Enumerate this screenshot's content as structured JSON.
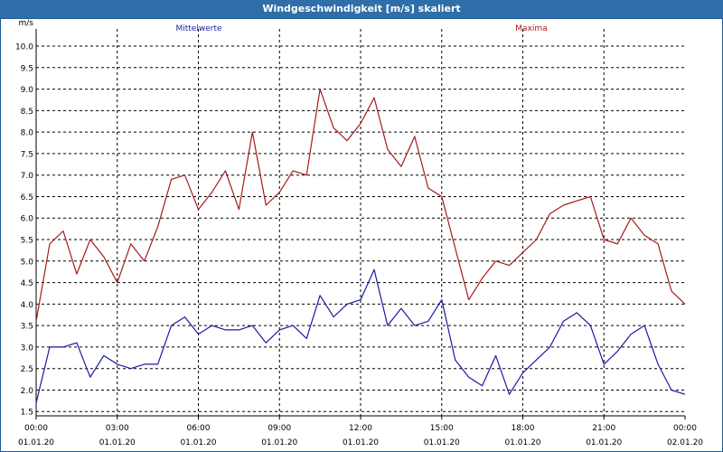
{
  "window": {
    "title": "Windgeschwindigkeit [m/s] skaliert"
  },
  "chart_data": {
    "type": "line",
    "title": "Windgeschwindigkeit [m/s] skaliert",
    "unit_label": "m/s",
    "ylim": [
      1.4,
      10.4
    ],
    "yticks": [
      "1.5",
      "2.0",
      "2.5",
      "3.0",
      "3.5",
      "4.0",
      "4.5",
      "5.0",
      "5.5",
      "6.0",
      "6.5",
      "7.0",
      "7.5",
      "8.0",
      "8.5",
      "9.0",
      "9.5",
      "10.0"
    ],
    "x_range_hours": [
      0,
      24
    ],
    "xticks": [
      {
        "time": "00:00",
        "date": "01.01.20"
      },
      {
        "time": "03:00",
        "date": "01.01.20"
      },
      {
        "time": "06:00",
        "date": "01.01.20"
      },
      {
        "time": "09:00",
        "date": "01.01.20"
      },
      {
        "time": "12:00",
        "date": "01.01.20"
      },
      {
        "time": "15:00",
        "date": "01.01.20"
      },
      {
        "time": "18:00",
        "date": "01.01.20"
      },
      {
        "time": "21:00",
        "date": "01.01.20"
      },
      {
        "time": "00:00",
        "date": "02.01.20"
      }
    ],
    "grid": true,
    "series": [
      {
        "name": "Mittelwerte",
        "color": "#1a1aa6",
        "x": [
          0,
          0.5,
          1,
          1.5,
          2,
          2.5,
          3,
          3.5,
          4,
          4.5,
          5,
          5.5,
          6,
          6.5,
          7,
          7.5,
          8,
          8.5,
          9,
          9.5,
          10,
          10.5,
          11,
          11.5,
          12,
          12.5,
          13,
          13.5,
          14,
          14.5,
          15,
          15.5,
          16,
          16.5,
          17,
          17.5,
          18,
          18.5,
          19,
          19.5,
          20,
          20.5,
          21,
          21.5,
          22,
          22.5,
          23,
          23.5,
          24
        ],
        "values": [
          1.7,
          3.0,
          3.0,
          3.1,
          2.3,
          2.8,
          2.6,
          2.5,
          2.6,
          2.6,
          3.5,
          3.7,
          3.3,
          3.5,
          3.4,
          3.4,
          3.5,
          3.1,
          3.4,
          3.5,
          3.2,
          4.2,
          3.7,
          4.0,
          4.1,
          4.8,
          3.5,
          3.9,
          3.5,
          3.6,
          4.1,
          2.7,
          2.3,
          2.1,
          2.8,
          1.9,
          2.4,
          2.7,
          3.0,
          3.6,
          3.8,
          3.5,
          2.6,
          2.9,
          3.3,
          3.5,
          2.6,
          2.0,
          1.9
        ]
      },
      {
        "name": "Maxima",
        "color": "#a61a1a",
        "x": [
          0,
          0.5,
          1,
          1.5,
          2,
          2.5,
          3,
          3.5,
          4,
          4.5,
          5,
          5.5,
          6,
          6.5,
          7,
          7.5,
          8,
          8.5,
          9,
          9.5,
          10,
          10.5,
          11,
          11.5,
          12,
          12.5,
          13,
          13.5,
          14,
          14.5,
          15,
          15.5,
          16,
          16.5,
          17,
          17.5,
          18,
          18.5,
          19,
          19.5,
          20,
          20.5,
          21,
          21.5,
          22,
          22.5,
          23,
          23.5,
          24
        ],
        "values": [
          3.6,
          5.4,
          5.7,
          4.7,
          5.5,
          5.1,
          4.5,
          5.4,
          5.0,
          5.8,
          6.9,
          7.0,
          6.2,
          6.6,
          7.1,
          6.2,
          8.0,
          6.3,
          6.6,
          7.1,
          7.0,
          9.0,
          8.1,
          7.8,
          8.2,
          8.8,
          7.6,
          7.2,
          7.9,
          6.7,
          6.5,
          5.3,
          4.1,
          4.6,
          5.0,
          4.9,
          5.2,
          5.5,
          6.1,
          6.3,
          6.4,
          6.5,
          5.5,
          5.4,
          6.0,
          5.6,
          5.4,
          4.3,
          4.0
        ]
      }
    ]
  }
}
